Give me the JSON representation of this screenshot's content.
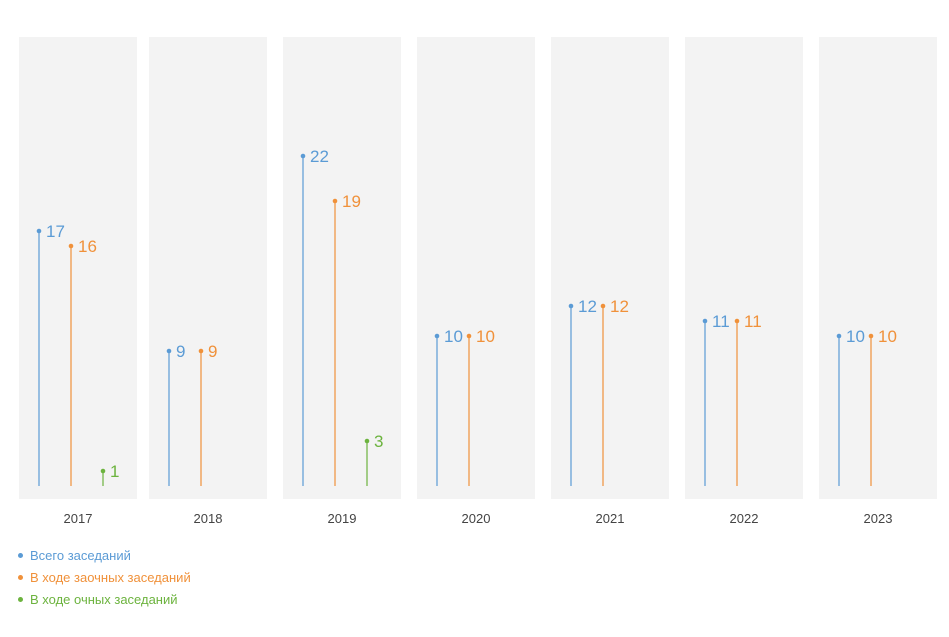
{
  "chart_data": {
    "type": "lollipop",
    "categories": [
      "2017",
      "2018",
      "2019",
      "2020",
      "2021",
      "2022",
      "2023"
    ],
    "series": [
      {
        "name": "Всего заседаний",
        "color": "#5b9bd5",
        "values": [
          17,
          9,
          22,
          10,
          12,
          11,
          10
        ]
      },
      {
        "name": "В ходе заочных заседаний",
        "color": "#f0913a",
        "values": [
          16,
          9,
          19,
          10,
          12,
          11,
          10
        ]
      },
      {
        "name": "В ходе очных заседаний",
        "color": "#6cb33e",
        "values": [
          1,
          null,
          3,
          null,
          null,
          null,
          null
        ]
      }
    ],
    "panel_color": "#f3f3f3",
    "legend_position": "bottom-left"
  }
}
